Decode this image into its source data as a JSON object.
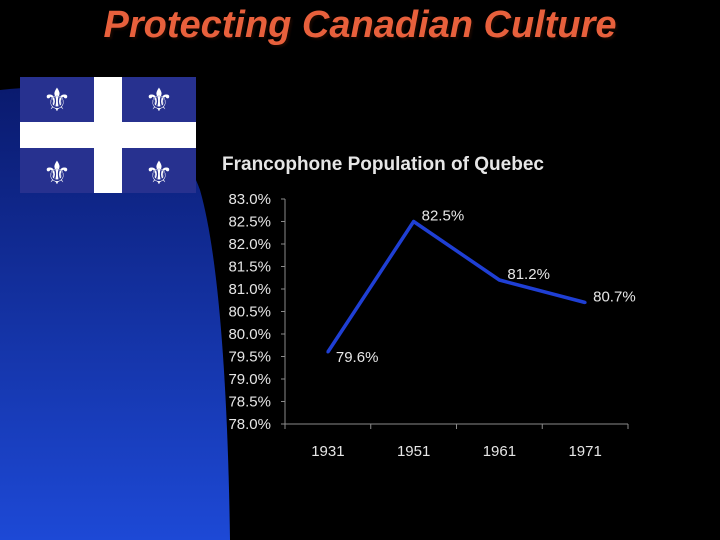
{
  "slide": {
    "title": "Protecting Canadian Culture",
    "title_color": "#e8603c",
    "background_color": "#000000",
    "accent_gradient": [
      "#0a1a6e",
      "#1d49d6"
    ]
  },
  "flag": {
    "icon": "quebec-flag-icon",
    "field_color": "#27318f",
    "cross_color": "#ffffff",
    "emblem": "fleur-de-lis-icon"
  },
  "chart_data": {
    "type": "line",
    "title": "Francophone Population of Quebec",
    "xlabel": "",
    "ylabel": "",
    "categories": [
      "1931",
      "1951",
      "1961",
      "1971"
    ],
    "series": [
      {
        "values": [
          79.6,
          82.5,
          81.2,
          80.7
        ],
        "labels": [
          "79.6%",
          "82.5%",
          "81.2%",
          "80.7%"
        ],
        "color": "#1f3fd4"
      }
    ],
    "ylim": [
      78.0,
      83.0
    ],
    "y_ticks": [
      78.0,
      78.5,
      79.0,
      79.5,
      80.0,
      80.5,
      81.0,
      81.5,
      82.0,
      82.5,
      83.0
    ],
    "y_tick_labels": [
      "78.0%",
      "78.5%",
      "79.0%",
      "79.5%",
      "80.0%",
      "80.5%",
      "81.0%",
      "81.5%",
      "82.0%",
      "82.5%",
      "83.0%"
    ],
    "grid": false,
    "legend": "none"
  }
}
